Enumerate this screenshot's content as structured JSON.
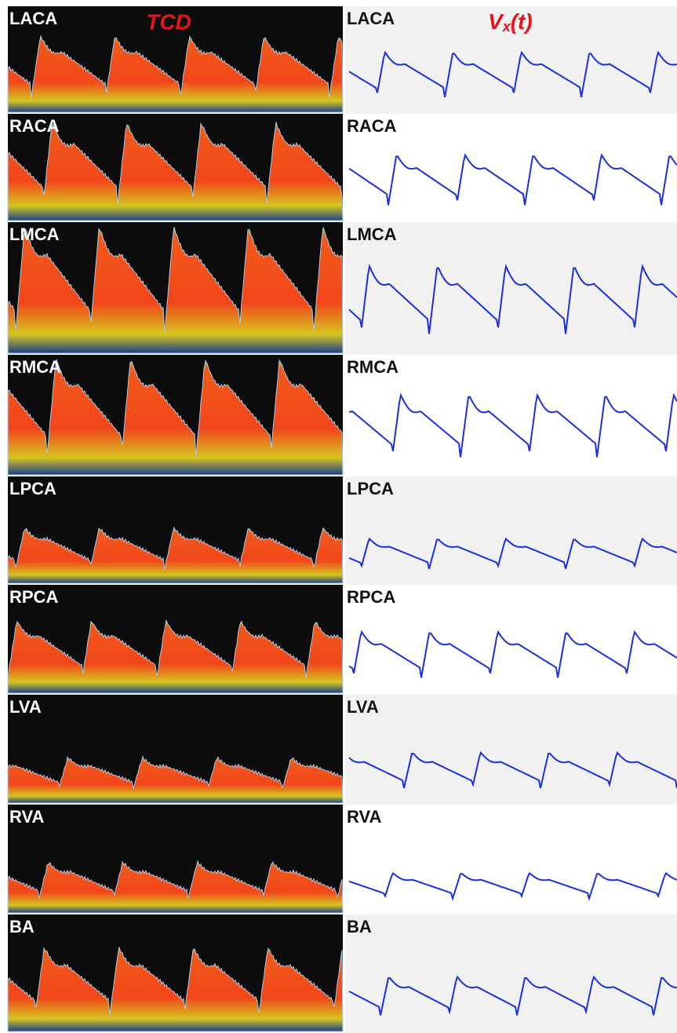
{
  "headers": {
    "left": "TCD",
    "right": {
      "main": "V",
      "sub": "x",
      "rest": "(t)"
    }
  },
  "rows": [
    "LACA",
    "RACA",
    "LMCA",
    "RMCA",
    "LPCA",
    "RPCA",
    "LVA",
    "RVA",
    "BA"
  ]
}
